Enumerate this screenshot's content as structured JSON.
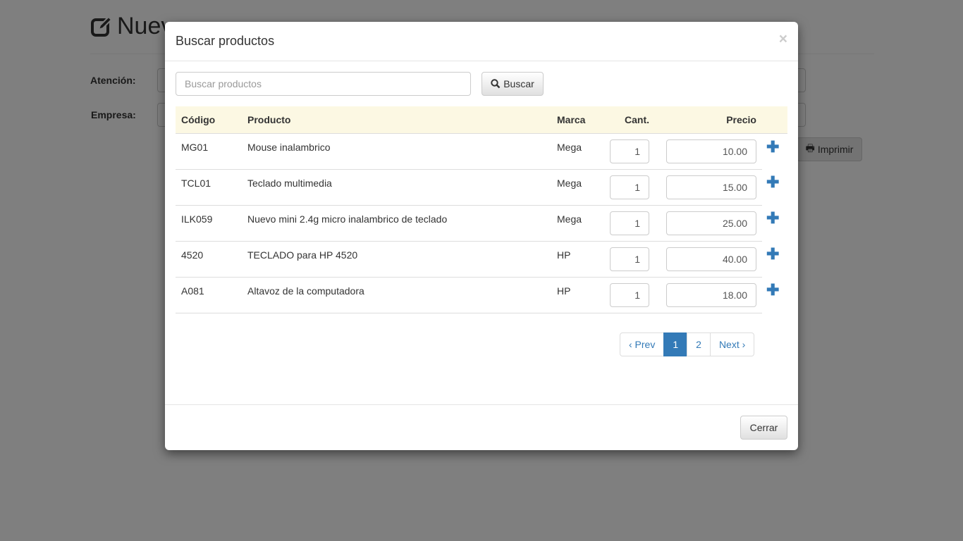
{
  "page": {
    "title": "Nueva Cotización",
    "atencion_label": "Atención:",
    "empresa_label": "Empresa:",
    "print_label": "Imprimir"
  },
  "modal": {
    "title": "Buscar productos",
    "close": "×",
    "search_placeholder": "Buscar productos",
    "search_value": "",
    "search_button": "Buscar",
    "columns": {
      "code": "Código",
      "product": "Producto",
      "brand": "Marca",
      "qty": "Cant.",
      "price": "Precio"
    },
    "rows": [
      {
        "code": "MG01",
        "product": "Mouse inalambrico",
        "brand": "Mega",
        "qty": "1",
        "price": "10.00"
      },
      {
        "code": "TCL01",
        "product": "Teclado multimedia",
        "brand": "Mega",
        "qty": "1",
        "price": "15.00"
      },
      {
        "code": "ILK059",
        "product": "Nuevo mini 2.4g micro inalambrico de teclado",
        "brand": "Mega",
        "qty": "1",
        "price": "25.00"
      },
      {
        "code": "4520",
        "product": "TECLADO para HP 4520",
        "brand": "HP",
        "qty": "1",
        "price": "40.00"
      },
      {
        "code": "A081",
        "product": "Altavoz de la computadora",
        "brand": "HP",
        "qty": "1",
        "price": "18.00"
      }
    ],
    "pagination": {
      "prev": "‹ Prev",
      "pages": [
        "1",
        "2"
      ],
      "current": "1",
      "next": "Next ›"
    },
    "close_button": "Cerrar"
  },
  "colors": {
    "accent": "#337ab7",
    "table_header": "#fcf8e3"
  }
}
